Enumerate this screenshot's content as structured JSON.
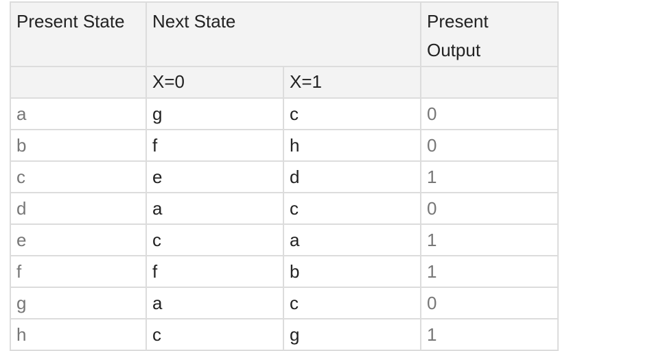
{
  "table": {
    "headers": {
      "present_state": "Present State",
      "next_state": "Next State",
      "present_output": "Present\nOutput",
      "x0": "X=0",
      "x1": "X=1"
    },
    "rows": [
      {
        "state": "a",
        "x0": "g",
        "x1": "c",
        "output": "0"
      },
      {
        "state": "b",
        "x0": "f",
        "x1": "h",
        "output": "0"
      },
      {
        "state": "c",
        "x0": "e",
        "x1": "d",
        "output": "1"
      },
      {
        "state": "d",
        "x0": "a",
        "x1": "c",
        "output": "0"
      },
      {
        "state": "e",
        "x0": "c",
        "x1": "a",
        "output": "1"
      },
      {
        "state": "f",
        "x0": "f",
        "x1": "b",
        "output": "1"
      },
      {
        "state": "g",
        "x0": "a",
        "x1": "c",
        "output": "0"
      },
      {
        "state": "h",
        "x0": "c",
        "x1": "g",
        "output": "1"
      }
    ]
  }
}
